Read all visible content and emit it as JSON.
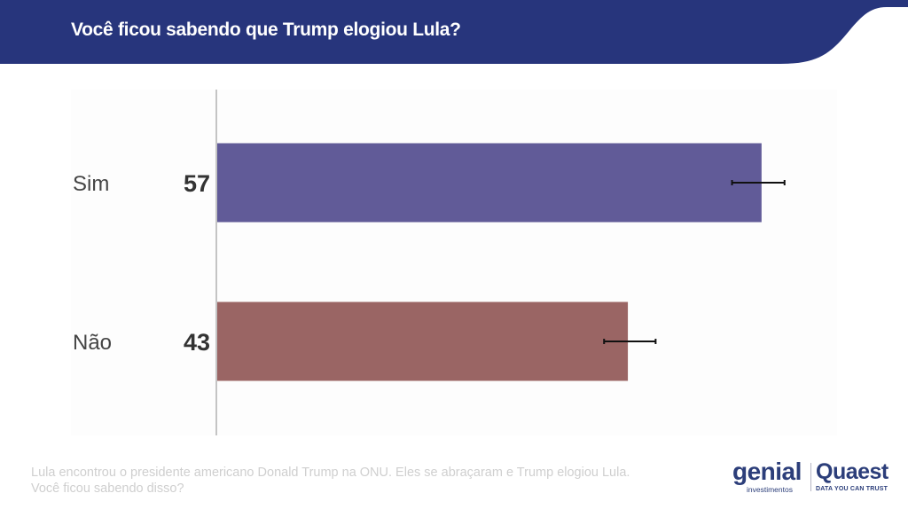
{
  "header": {
    "title": "Você ficou sabendo que Trump elogiou Lula?",
    "background_color": "#27357c"
  },
  "chart_data": {
    "type": "bar",
    "orientation": "horizontal",
    "title": "Você ficou sabendo que Trump elogiou Lula?",
    "xlabel": "",
    "ylabel": "",
    "xlim": [
      0,
      65
    ],
    "grid": false,
    "categories": [
      "Sim",
      "Não"
    ],
    "values": [
      57,
      43
    ],
    "value_labels": [
      "57",
      "43"
    ],
    "error_bars": [
      {
        "low": 54,
        "high": 59.5
      },
      {
        "low": 40.6,
        "high": 46
      }
    ],
    "colors": [
      "#615b98",
      "#9a6564"
    ],
    "error_bar_color": "#111111"
  },
  "footer": {
    "question_line1": "Lula encontrou o presidente americano Donald Trump na ONU. Eles se abraçaram e Trump elogiou Lula.",
    "question_line2": "Você ficou sabendo disso?"
  },
  "logos": {
    "genial": {
      "name": "genial",
      "subtitle": "investimentos"
    },
    "quaest": {
      "name": "Quaest",
      "tagline": "DATA YOU CAN TRUST"
    }
  }
}
